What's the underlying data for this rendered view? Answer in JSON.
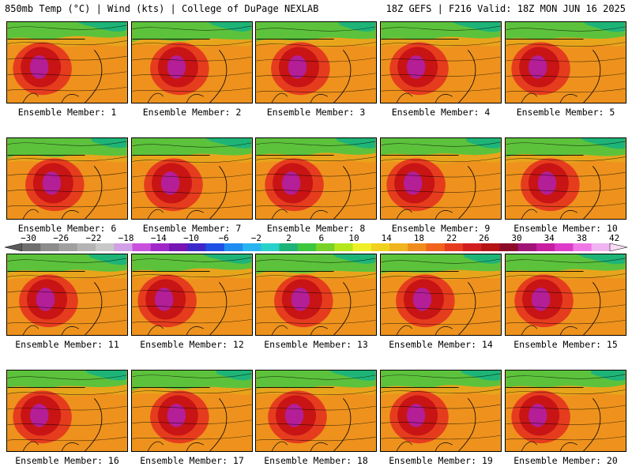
{
  "header": {
    "left": "850mb Temp (°C) | Wind (kts) | College of DuPage NEXLAB",
    "right": "18Z GEFS | F216 Valid: 18Z MON JUN 16 2025"
  },
  "members": [
    "Ensemble Member: 1",
    "Ensemble Member: 2",
    "Ensemble Member: 3",
    "Ensemble Member: 4",
    "Ensemble Member: 5",
    "Ensemble Member: 6",
    "Ensemble Member: 7",
    "Ensemble Member: 8",
    "Ensemble Member: 9",
    "Ensemble Member: 10",
    "Ensemble Member: 11",
    "Ensemble Member: 12",
    "Ensemble Member: 13",
    "Ensemble Member: 14",
    "Ensemble Member: 15",
    "Ensemble Member: 16",
    "Ensemble Member: 17",
    "Ensemble Member: 18",
    "Ensemble Member: 19",
    "Ensemble Member: 20"
  ],
  "colorbar": {
    "labels": [
      "−30",
      "−26",
      "−22",
      "−18",
      "−14",
      "−10",
      "−6",
      "−2",
      "2",
      "6",
      "10",
      "14",
      "18",
      "22",
      "26",
      "30",
      "34",
      "38",
      "42"
    ],
    "colors": [
      "#6e6e6e",
      "#8c8c8c",
      "#a0a0a0",
      "#b4b4b4",
      "#c8c8c8",
      "#d2a0e6",
      "#c850dc",
      "#a028c8",
      "#7814b4",
      "#3c28c8",
      "#1e50e6",
      "#1e8cf0",
      "#28b4f0",
      "#28d2c8",
      "#1eb478",
      "#3cc83c",
      "#78d228",
      "#b4e61e",
      "#f0f028",
      "#f0d21e",
      "#f0b41e",
      "#f08c1e",
      "#f0641e",
      "#e63c1e",
      "#d21e1e",
      "#b41414",
      "#8c0a28",
      "#a01478",
      "#c81ea0",
      "#dc3cc8",
      "#f078e6",
      "#f0b4f0"
    ]
  }
}
